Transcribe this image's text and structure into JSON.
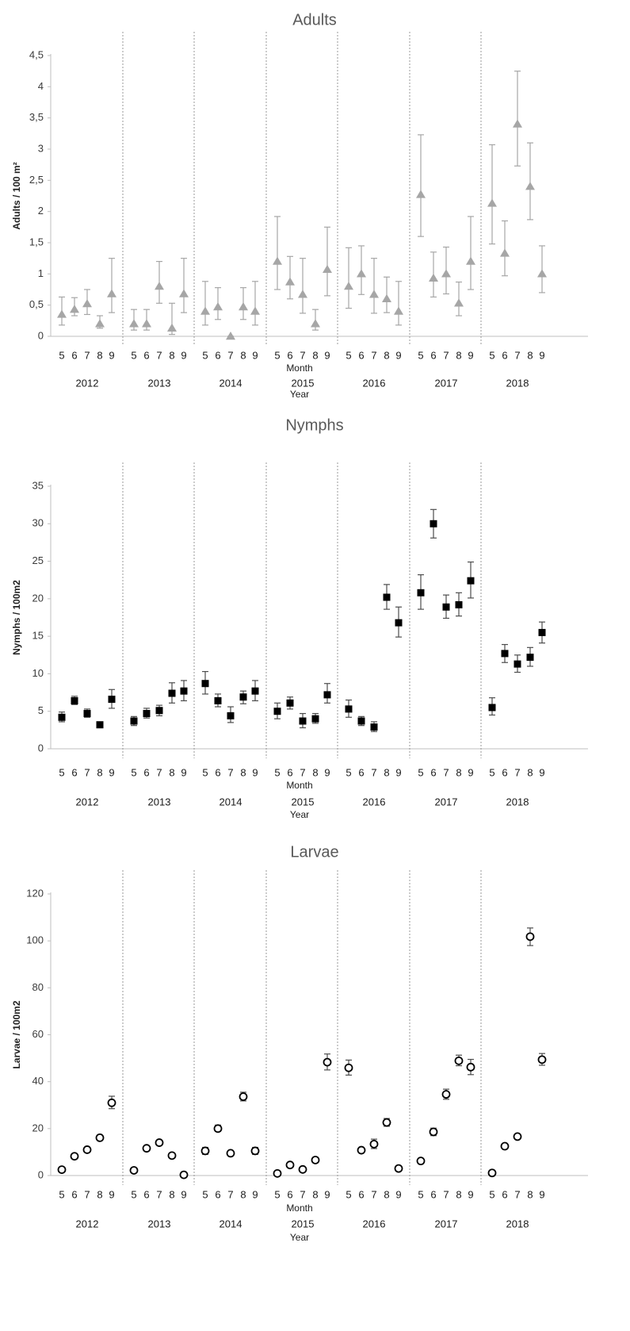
{
  "chart_data": [
    {
      "type": "scatter",
      "title": "Adults",
      "ylabel": "Adults / 100 m²",
      "xlabel": "Month",
      "xlabel2": "Year",
      "ylim": [
        0,
        4.5
      ],
      "yticks": [
        "0",
        "0,5",
        "1",
        "1,5",
        "2",
        "2,5",
        "3",
        "3,5",
        "4",
        "4,5"
      ],
      "ytick_values": [
        0,
        0.5,
        1,
        1.5,
        2,
        2.5,
        3,
        3.5,
        4,
        4.5
      ],
      "years": [
        "2012",
        "2013",
        "2014",
        "2015",
        "2016",
        "2017",
        "2018"
      ],
      "months": [
        "5",
        "6",
        "7",
        "8",
        "9"
      ],
      "marker": "triangle",
      "color": "#a6a6a6",
      "values": [
        [
          0.35,
          0.43,
          0.52,
          0.2,
          0.68
        ],
        [
          0.2,
          0.2,
          0.8,
          0.13,
          0.68
        ],
        [
          0.4,
          0.47,
          0.0,
          0.47,
          0.4
        ],
        [
          1.2,
          0.87,
          0.67,
          0.2,
          1.07
        ],
        [
          0.8,
          1.0,
          0.67,
          0.6,
          0.4
        ],
        [
          2.27,
          0.93,
          1.0,
          0.53,
          1.2
        ],
        [
          2.13,
          1.33,
          3.4,
          2.4,
          1.0
        ]
      ],
      "err_low": [
        [
          0.18,
          0.33,
          0.35,
          0.13,
          0.38
        ],
        [
          0.1,
          0.1,
          0.53,
          0.03,
          0.38
        ],
        [
          0.18,
          0.27,
          0.0,
          0.27,
          0.18
        ],
        [
          0.75,
          0.6,
          0.37,
          0.1,
          0.65
        ],
        [
          0.45,
          0.67,
          0.37,
          0.38,
          0.18
        ],
        [
          1.6,
          0.63,
          0.68,
          0.33,
          0.75
        ],
        [
          1.48,
          0.97,
          2.73,
          1.87,
          0.7
        ]
      ],
      "err_high": [
        [
          0.63,
          0.62,
          0.75,
          0.33,
          1.25
        ],
        [
          0.43,
          0.43,
          1.2,
          0.53,
          1.25
        ],
        [
          0.88,
          0.78,
          0.0,
          0.78,
          0.88
        ],
        [
          1.92,
          1.28,
          1.25,
          0.43,
          1.75
        ],
        [
          1.42,
          1.45,
          1.25,
          0.95,
          0.88
        ],
        [
          3.23,
          1.35,
          1.43,
          0.87,
          1.92
        ],
        [
          3.07,
          1.85,
          4.25,
          3.1,
          1.45
        ]
      ]
    },
    {
      "type": "scatter",
      "title": "Nymphs",
      "ylabel": "Nymphs / 100m2",
      "xlabel": "Month",
      "xlabel2": "Year",
      "ylim": [
        0,
        35
      ],
      "yticks": [
        "0",
        "5",
        "10",
        "15",
        "20",
        "25",
        "30",
        "35"
      ],
      "ytick_values": [
        0,
        5,
        10,
        15,
        20,
        25,
        30,
        35
      ],
      "years": [
        "2012",
        "2013",
        "2014",
        "2015",
        "2016",
        "2017",
        "2018"
      ],
      "months": [
        "5",
        "6",
        "7",
        "8",
        "9"
      ],
      "marker": "square",
      "color": "#000000",
      "values": [
        [
          4.2,
          6.4,
          4.7,
          3.2,
          6.6
        ],
        [
          3.7,
          4.7,
          5.1,
          7.4,
          7.7
        ],
        [
          8.7,
          6.4,
          4.4,
          6.9,
          7.7
        ],
        [
          5.0,
          6.1,
          3.7,
          4.0,
          7.2
        ],
        [
          5.3,
          3.7,
          2.9,
          20.2,
          16.8
        ],
        [
          20.8,
          30.0,
          18.9,
          19.2,
          22.4
        ],
        [
          5.5,
          12.7,
          11.3,
          12.2,
          15.5
        ]
      ],
      "err_low": [
        [
          3.6,
          5.9,
          4.2,
          null,
          5.4
        ],
        [
          3.1,
          4.1,
          4.4,
          6.1,
          6.4
        ],
        [
          7.3,
          5.6,
          3.5,
          6.0,
          6.4
        ],
        [
          4.0,
          5.3,
          2.8,
          3.4,
          6.1
        ],
        [
          4.2,
          3.1,
          2.3,
          18.6,
          14.9
        ],
        [
          18.6,
          28.1,
          17.4,
          17.7,
          20.1
        ],
        [
          4.5,
          11.5,
          10.2,
          11.0,
          14.1
        ]
      ],
      "err_high": [
        [
          4.9,
          7.0,
          5.3,
          null,
          7.9
        ],
        [
          4.3,
          5.4,
          5.8,
          8.8,
          9.1
        ],
        [
          10.3,
          7.3,
          5.6,
          7.7,
          9.1
        ],
        [
          6.1,
          6.9,
          4.7,
          4.7,
          8.7
        ],
        [
          6.5,
          4.3,
          3.6,
          21.9,
          18.9
        ],
        [
          23.2,
          31.9,
          20.5,
          20.8,
          24.9
        ],
        [
          6.8,
          13.9,
          12.5,
          13.5,
          16.9
        ]
      ]
    },
    {
      "type": "scatter",
      "title": "Larvae",
      "ylabel": "Larvae / 100m2",
      "xlabel": "Month",
      "xlabel2": "Year",
      "ylim": [
        0,
        120
      ],
      "yticks": [
        "0",
        "20",
        "40",
        "60",
        "80",
        "100",
        "120"
      ],
      "ytick_values": [
        0,
        20,
        40,
        60,
        80,
        100,
        120
      ],
      "years": [
        "2012",
        "2013",
        "2014",
        "2015",
        "2016",
        "2017",
        "2018"
      ],
      "months": [
        "5",
        "6",
        "7",
        "8",
        "9"
      ],
      "marker": "circle",
      "color": "#000000",
      "values": [
        [
          2.5,
          8.2,
          11.0,
          16.1,
          31.0
        ],
        [
          2.2,
          11.6,
          14.0,
          8.5,
          0.3
        ],
        [
          10.5,
          20.0,
          9.5,
          33.6,
          10.5
        ],
        [
          0.9,
          4.5,
          2.6,
          6.6,
          48.3
        ],
        [
          45.9,
          10.8,
          13.4,
          22.6,
          3.0
        ],
        [
          6.2,
          18.6,
          34.6,
          48.9,
          46.2
        ],
        [
          1.1,
          12.5,
          16.6,
          101.8,
          49.4
        ]
      ],
      "err_low": [
        [
          null,
          null,
          null,
          null,
          28.5
        ],
        [
          null,
          null,
          null,
          null,
          null
        ],
        [
          9.0,
          18.8,
          null,
          31.8,
          9.0
        ],
        [
          null,
          null,
          null,
          null,
          45.0
        ],
        [
          42.8,
          null,
          11.5,
          21.0,
          null
        ],
        [
          null,
          17.0,
          32.5,
          46.8,
          43.0
        ],
        [
          null,
          null,
          null,
          98.0,
          47.0
        ]
      ],
      "err_high": [
        [
          null,
          null,
          null,
          null,
          33.8
        ],
        [
          null,
          null,
          null,
          null,
          null
        ],
        [
          12.0,
          21.5,
          null,
          35.5,
          12.0
        ],
        [
          null,
          null,
          null,
          null,
          51.8
        ],
        [
          49.2,
          null,
          15.5,
          24.3,
          null
        ],
        [
          null,
          20.2,
          36.8,
          51.3,
          49.5
        ],
        [
          null,
          null,
          null,
          105.5,
          52.0
        ]
      ]
    }
  ]
}
